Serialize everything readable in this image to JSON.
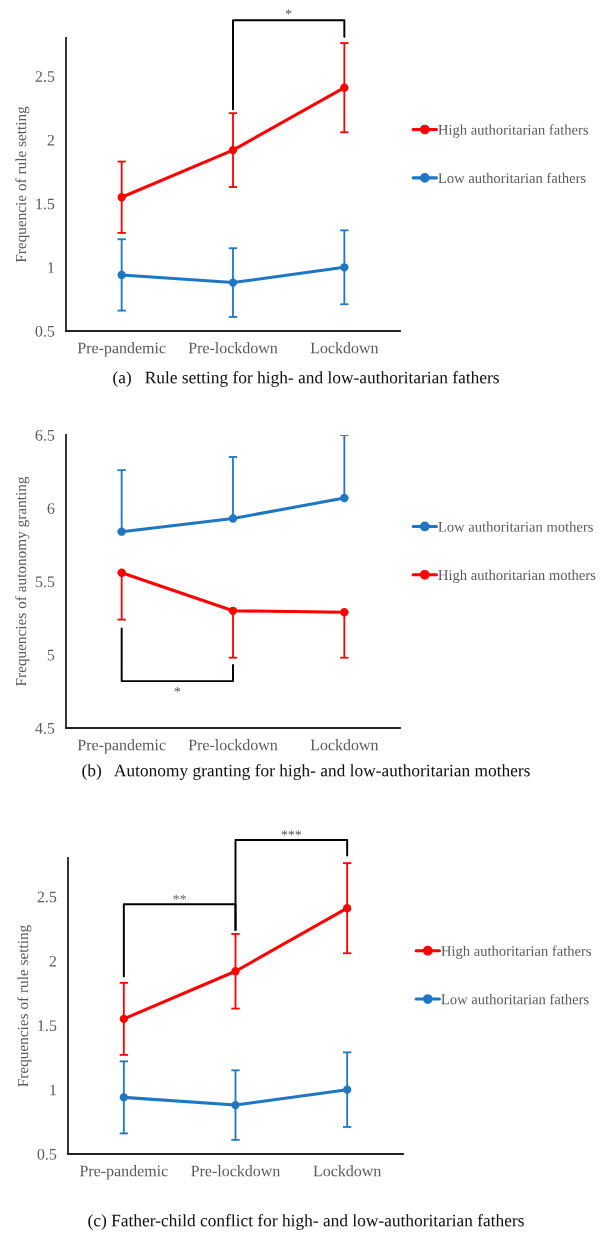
{
  "chart_data": [
    {
      "type": "line",
      "title": "(a)   Rule setting for high- and low-authoritarian fathers",
      "ylabel": "Frequencie of rule setting",
      "categories": [
        "Pre-pandemic",
        "Pre-lockdown",
        "Lockdown"
      ],
      "ylim": [
        0.5,
        2.8
      ],
      "yticks": [
        0.5,
        1,
        1.5,
        2,
        2.5
      ],
      "marker": "circle",
      "line_style": "solid",
      "grid": false,
      "legend": "right",
      "annotations": [
        "*"
      ],
      "series": [
        {
          "name": "High authoritarian fathers",
          "color": "#ff0000",
          "values": [
            1.55,
            1.92,
            2.41
          ],
          "errors": [
            0.28,
            0.29,
            0.35
          ]
        },
        {
          "name": "Low authoritarian fathers",
          "color": "#1f77c4",
          "values": [
            0.94,
            0.88,
            1.0
          ],
          "errors": [
            0.28,
            0.27,
            0.29
          ]
        }
      ]
    },
    {
      "type": "line",
      "title": "(b)   Autonomy granting for high- and low-authoritarian mothers",
      "ylabel": "Frequencies of autonomy granting",
      "categories": [
        "Pre-pandemic",
        "Pre-lockdown",
        "Lockdown"
      ],
      "ylim": [
        4.5,
        6.5
      ],
      "yticks": [
        4.5,
        5,
        5.5,
        6,
        6.5
      ],
      "marker": "circle",
      "line_style": "solid",
      "grid": false,
      "legend": "right",
      "annotations": [
        "*"
      ],
      "series": [
        {
          "name": "Low authoritarian mothers",
          "color": "#1f77c4",
          "values": [
            5.84,
            5.93,
            6.07
          ],
          "errors": [
            [
              5.84,
              6.26
            ],
            [
              5.93,
              6.35
            ],
            [
              6.07,
              6.5
            ]
          ]
        },
        {
          "name": "High authoritarian mothers",
          "color": "#ff0000",
          "values": [
            5.56,
            5.3,
            5.29
          ],
          "errors": [
            [
              5.24,
              5.56
            ],
            [
              4.98,
              5.3
            ],
            [
              4.98,
              5.29
            ]
          ]
        }
      ]
    },
    {
      "type": "line",
      "title": "(c) Father-child conflict for high- and low-authoritarian fathers",
      "ylabel": "Frequencies of rule setting",
      "categories": [
        "Pre-pandemic",
        "Pre-lockdown",
        "Lockdown"
      ],
      "ylim": [
        0.5,
        2.8
      ],
      "yticks": [
        0.5,
        1,
        1.5,
        2,
        2.5
      ],
      "marker": "circle",
      "line_style": "solid",
      "grid": false,
      "legend": "right",
      "annotations": [
        "**",
        "***"
      ],
      "series": [
        {
          "name": "High authoritarian fathers",
          "color": "#ff0000",
          "values": [
            1.55,
            1.92,
            2.41
          ],
          "errors": [
            0.28,
            0.29,
            0.35
          ]
        },
        {
          "name": "Low authoritarian fathers",
          "color": "#1f77c4",
          "values": [
            0.94,
            0.88,
            1.0
          ],
          "errors": [
            0.28,
            0.27,
            0.29
          ]
        }
      ]
    }
  ]
}
